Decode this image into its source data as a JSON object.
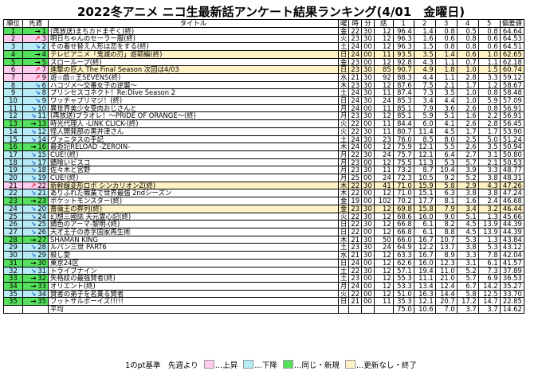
{
  "title": "2022冬アニメ ニコ生最新話アンケート結果ランキング(4/01　金曜日)",
  "headers": {
    "rank": "順位",
    "prev": "先週",
    "title": "タイトル",
    "day": "曜",
    "hour": "時",
    "minute": "分",
    "episode": "話",
    "c1": "1",
    "c2": "2",
    "c3": "3",
    "c4": "4",
    "c5": "5",
    "score": "偏差値"
  },
  "colors": {
    "rising": "#ffccee",
    "falling": "#b7ecf7",
    "steady": "#55e05e",
    "final": "#fff2c4",
    "up_arrow": "#e8192c",
    "down_arrow": "#1c63c8"
  },
  "rows": [
    {
      "rank": "1",
      "status": "steady",
      "mark": "→",
      "prev": "1",
      "title": "(再放送)まちカドまぞく(終)",
      "day": "金",
      "hour": "22",
      "minute": "30",
      "episode": "12",
      "c1": "96.4",
      "c2": "1.4",
      "c3": "0.8",
      "c4": "0.5",
      "c5": "0.8",
      "score": "64.64",
      "final": false
    },
    {
      "rank": "2",
      "status": "rising",
      "mark": "↗",
      "prev": "3",
      "title": "明日ちゃんのセーラー服(終)",
      "day": "火",
      "hour": "23",
      "minute": "30",
      "episode": "12",
      "c1": "96.3",
      "c2": "1.6",
      "c3": "0.6",
      "c4": "0.8",
      "c5": "0.6",
      "score": "64.53",
      "final": false
    },
    {
      "rank": "3",
      "status": "falling",
      "mark": "↘",
      "prev": "2",
      "title": "その着せ替え人形は恋をする(終)",
      "day": "土",
      "hour": "24",
      "minute": "00",
      "episode": "12",
      "c1": "96.3",
      "c2": "1.5",
      "c3": "0.8",
      "c4": "0.8",
      "c5": "0.6",
      "score": "64.51",
      "final": false
    },
    {
      "rank": "4",
      "status": "steady",
      "mark": "→",
      "prev": "4",
      "title": "テレビアニメ「鬼滅の刃」遊郭編(終)",
      "day": "日",
      "hour": "24",
      "minute": "00",
      "episode": "11",
      "c1": "93.5",
      "c2": "3.5",
      "c3": "1.4",
      "c4": "0.6",
      "c5": "1.0",
      "score": "62.65",
      "final": true
    },
    {
      "rank": "5",
      "status": "steady",
      "mark": "→",
      "prev": "5",
      "title": "スローループ(終)",
      "day": "金",
      "hour": "23",
      "minute": "00",
      "episode": "12",
      "c1": "92.8",
      "c2": "4.3",
      "c3": "1.1",
      "c4": "0.7",
      "c5": "1.1",
      "score": "62.18",
      "final": false
    },
    {
      "rank": "6",
      "status": "rising",
      "mark": "↗",
      "prev": "7",
      "title": "進撃の巨人 The Final Season 次回は4/03",
      "day": "日",
      "hour": "23",
      "minute": "30",
      "episode": "85",
      "c1": "90.7",
      "c2": "4.9",
      "c3": "1.8",
      "c4": "1.0",
      "c5": "1.5",
      "score": "60.74",
      "final": true
    },
    {
      "rank": "7",
      "status": "rising",
      "mark": "↗",
      "prev": "9",
      "title": "遊☆戯☆王SEVENS(終)",
      "day": "水",
      "hour": "21",
      "minute": "30",
      "episode": "92",
      "c1": "88.3",
      "c2": "4.4",
      "c3": "1.1",
      "c4": "2.8",
      "c5": "3.3",
      "score": "59.12",
      "final": false
    },
    {
      "rank": "8",
      "status": "falling",
      "mark": "↘",
      "prev": "6",
      "title": "ハコヅメ～交番女子の逆襲～",
      "day": "木",
      "hour": "23",
      "minute": "30",
      "episode": "12",
      "c1": "87.6",
      "c2": "7.5",
      "c3": "2.1",
      "c4": "1.7",
      "c5": "1.2",
      "score": "58.67",
      "final": false
    },
    {
      "rank": "9",
      "status": "falling",
      "mark": "↘",
      "prev": "8",
      "title": "プリンセスコネクト！Re:Dive Season 2",
      "day": "土",
      "hour": "24",
      "minute": "30",
      "episode": "11",
      "c1": "87.4",
      "c2": "7.3",
      "c3": "3.5",
      "c4": "1.0",
      "c5": "0.8",
      "score": "58.48",
      "final": false
    },
    {
      "rank": "10",
      "status": "falling",
      "mark": "↘",
      "prev": "9",
      "title": "ワッチャプリマジ！(終)",
      "day": "日",
      "hour": "24",
      "minute": "30",
      "episode": "24",
      "c1": "85.3",
      "c2": "3.4",
      "c3": "4.4",
      "c4": "1.0",
      "c5": "5.9",
      "score": "57.09",
      "final": false
    },
    {
      "rank": "11",
      "status": "falling",
      "mark": "↘",
      "prev": "10",
      "title": "異世界美少女受肉おじさんと",
      "day": "月",
      "hour": "24",
      "minute": "00",
      "episode": "11",
      "c1": "85.1",
      "c2": "7.9",
      "c3": "3.6",
      "c4": "2.6",
      "c5": "0.8",
      "score": "56.91",
      "final": false
    },
    {
      "rank": "12",
      "status": "falling",
      "mark": "↘",
      "prev": "11",
      "title": "(再放送)プラオレ！～PRIDE OF ORANGE～(終)",
      "day": "月",
      "hour": "23",
      "minute": "30",
      "episode": "12",
      "c1": "85.1",
      "c2": "5.9",
      "c3": "5.1",
      "c4": "1.6",
      "c5": "2.2",
      "score": "56.91",
      "final": false
    },
    {
      "rank": "13",
      "status": "steady",
      "mark": "→",
      "prev": "13",
      "title": "時光代理人 -LINK CLICK-(終)",
      "day": "火",
      "hour": "22",
      "minute": "00",
      "episode": "11",
      "c1": "84.4",
      "c2": "6.0",
      "c3": "4.1",
      "c4": "2.6",
      "c5": "2.8",
      "score": "56.45",
      "final": false
    },
    {
      "rank": "14",
      "status": "falling",
      "mark": "↘",
      "prev": "12",
      "title": "怪人開発部の黒井津さん",
      "day": "火",
      "hour": "22",
      "minute": "30",
      "episode": "11",
      "c1": "80.7",
      "c2": "11.4",
      "c3": "4.5",
      "c4": "1.7",
      "c5": "1.7",
      "score": "53.90",
      "final": false
    },
    {
      "rank": "15",
      "status": "falling",
      "mark": "↘",
      "prev": "14",
      "title": "ヴァニタスの手記",
      "day": "土",
      "hour": "24",
      "minute": "30",
      "episode": "23",
      "c1": "76.0",
      "c2": "8.5",
      "c3": "8.0",
      "c4": "2.5",
      "c5": "5.0",
      "score": "51.24",
      "final": false
    },
    {
      "rank": "16",
      "status": "steady",
      "mark": "→",
      "prev": "16",
      "title": "最遊記RELOAD -ZEROIN-",
      "day": "木",
      "hour": "24",
      "minute": "00",
      "episode": "12",
      "c1": "75.9",
      "c2": "12.1",
      "c3": "5.5",
      "c4": "2.6",
      "c5": "3.5",
      "score": "50.94",
      "final": false
    },
    {
      "rank": "17",
      "status": "falling",
      "mark": "↘",
      "prev": "15",
      "title": "CUE!(終)",
      "day": "月",
      "hour": "22",
      "minute": "30",
      "episode": "24",
      "c1": "75.7",
      "c2": "12.1",
      "c3": "6.4",
      "c4": "2.7",
      "c5": "3.1",
      "score": "50.80",
      "final": false
    },
    {
      "rank": "18",
      "status": "falling",
      "mark": "↘",
      "prev": "17",
      "title": "錆喰いビスコ",
      "day": "月",
      "hour": "23",
      "minute": "00",
      "episode": "12",
      "c1": "75.5",
      "c2": "11.3",
      "c3": "5.3",
      "c4": "5.7",
      "c5": "2.1",
      "score": "50.53",
      "final": false
    },
    {
      "rank": "19",
      "status": "falling",
      "mark": "↘",
      "prev": "18",
      "title": "佐々木と宮野",
      "day": "月",
      "hour": "23",
      "minute": "30",
      "episode": "11",
      "c1": "73.2",
      "c2": "8.7",
      "c3": "10.4",
      "c4": "3.9",
      "c5": "3.3",
      "score": "48.77",
      "final": false
    },
    {
      "rank": "20",
      "status": "falling",
      "mark": "↘",
      "prev": "19",
      "title": "CUE!(終)",
      "day": "月",
      "hour": "25",
      "minute": "00",
      "episode": "24",
      "c1": "72.3",
      "c2": "10.5",
      "c3": "9.2",
      "c4": "5.2",
      "c5": "3.8",
      "score": "48.31",
      "final": false
    },
    {
      "rank": "21",
      "status": "rising",
      "mark": "↗",
      "prev": "22",
      "title": "新幹線変形ロボ シンカリオンZ(終)",
      "day": "木",
      "hour": "22",
      "minute": "30",
      "episode": "41",
      "c1": "71.0",
      "c2": "15.9",
      "c3": "5.8",
      "c4": "2.9",
      "c5": "4.3",
      "score": "47.26",
      "final": true
    },
    {
      "rank": "22",
      "status": "falling",
      "mark": "↘",
      "prev": "21",
      "title": "ありふれた職業で世界最強 2ndシーズン",
      "day": "木",
      "hour": "22",
      "minute": "00",
      "episode": "12",
      "c1": "71.0",
      "c2": "15.1",
      "c3": "6.3",
      "c4": "3.8",
      "c5": "3.8",
      "score": "47.24",
      "final": false
    },
    {
      "rank": "23",
      "status": "steady",
      "mark": "→",
      "prev": "23",
      "title": "ポケットモンスター(終)",
      "day": "金",
      "hour": "19",
      "minute": "00",
      "episode": "102",
      "c1": "70.2",
      "c2": "17.7",
      "c3": "8.1",
      "c4": "1.6",
      "c5": "2.4",
      "score": "46.68",
      "final": false
    },
    {
      "rank": "24",
      "status": "falling",
      "mark": "↘",
      "prev": "20",
      "title": "薔薇王の葬列(終)",
      "day": "金",
      "hour": "23",
      "minute": "30",
      "episode": "12",
      "c1": "69.8",
      "c2": "15.8",
      "c3": "7.9",
      "c4": "3.4",
      "c5": "3.2",
      "score": "46.44",
      "final": true
    },
    {
      "rank": "25",
      "status": "falling",
      "mark": "↘",
      "prev": "24",
      "title": "幻想三國誌 天元霊心記(終)",
      "day": "火",
      "hour": "22",
      "minute": "30",
      "episode": "12",
      "c1": "68.6",
      "c2": "16.0",
      "c3": "9.0",
      "c4": "5.1",
      "c5": "1.3",
      "score": "45.66",
      "final": false
    },
    {
      "rank": "26",
      "status": "falling",
      "mark": "↘",
      "prev": "25",
      "title": "錆色のアーマ-黎明-(終)",
      "day": "日",
      "hour": "22",
      "minute": "30",
      "episode": "12",
      "c1": "66.8",
      "c2": "6.1",
      "c3": "8.2",
      "c4": "4.5",
      "c5": "13.9",
      "score": "44.39",
      "final": false
    },
    {
      "rank": "27",
      "status": "falling",
      "mark": "↘",
      "prev": "26",
      "title": "天才王子の赤字国家再生術",
      "day": "日",
      "hour": "22",
      "minute": "00",
      "episode": "12",
      "c1": "66.8",
      "c2": "6.1",
      "c3": "8.8",
      "c4": "4.5",
      "c5": "13.9",
      "score": "44.39",
      "final": false
    },
    {
      "rank": "28",
      "status": "steady",
      "mark": "→",
      "prev": "27",
      "title": "SHAMAN KING",
      "day": "木",
      "hour": "21",
      "minute": "30",
      "episode": "50",
      "c1": "66.0",
      "c2": "16.7",
      "c3": "10.7",
      "c4": "5.3",
      "c5": "1.3",
      "score": "43.84",
      "final": false
    },
    {
      "rank": "29",
      "status": "falling",
      "mark": "↘",
      "prev": "28",
      "title": "ルパン三世 PART6",
      "day": "土",
      "hour": "23",
      "minute": "30",
      "episode": "24",
      "c1": "64.9",
      "c2": "12.2",
      "c3": "13.7",
      "c4": "3.8",
      "c5": "5.3",
      "score": "43.12",
      "final": false
    },
    {
      "rank": "30",
      "status": "falling",
      "mark": "↘",
      "prev": "29",
      "title": "殺し愛",
      "day": "水",
      "hour": "21",
      "minute": "30",
      "episode": "12",
      "c1": "63.3",
      "c2": "16.7",
      "c3": "8.9",
      "c4": "3.3",
      "c5": "7.8",
      "score": "42.04",
      "final": false
    },
    {
      "rank": "31",
      "status": "steady",
      "mark": "→",
      "prev": "30",
      "title": "東京24区",
      "day": "日",
      "hour": "24",
      "minute": "00",
      "episode": "12",
      "c1": "62.6",
      "c2": "16.0",
      "c3": "12.3",
      "c4": "3.1",
      "c5": "6.1",
      "score": "41.57",
      "final": false
    },
    {
      "rank": "32",
      "status": "falling",
      "mark": "↘",
      "prev": "31",
      "title": "トライブナイン",
      "day": "土",
      "hour": "22",
      "minute": "30",
      "episode": "12",
      "c1": "57.1",
      "c2": "19.4",
      "c3": "11.0",
      "c4": "5.2",
      "c5": "7.3",
      "score": "37.89",
      "final": false
    },
    {
      "rank": "33",
      "status": "steady",
      "mark": "→",
      "prev": "32",
      "title": "失格紋の最強賢者(終)",
      "day": "土",
      "hour": "23",
      "minute": "00",
      "episode": "12",
      "c1": "55.3",
      "c2": "11.1",
      "c3": "21.0",
      "c4": "5.7",
      "c5": "6.9",
      "score": "36.53",
      "final": false
    },
    {
      "rank": "34",
      "status": "steady",
      "mark": "→",
      "prev": "33",
      "title": "オリエント(終)",
      "day": "月",
      "hour": "24",
      "minute": "00",
      "episode": "12",
      "c1": "53.3",
      "c2": "13.4",
      "c3": "12.4",
      "c4": "6.7",
      "c5": "14.2",
      "score": "35.27",
      "final": false
    },
    {
      "rank": "35",
      "status": "falling",
      "mark": "↘",
      "prev": "34",
      "title": "賢者の弟子を名乗る賢者",
      "day": "火",
      "hour": "22",
      "minute": "00",
      "episode": "12",
      "c1": "51.0",
      "c2": "16.3",
      "c3": "14.4",
      "c4": "5.8",
      "c5": "12.5",
      "score": "33.70",
      "final": false
    },
    {
      "rank": "35",
      "status": "steady",
      "mark": "→",
      "prev": "35",
      "title": "フットサルボーイズ!!!!!",
      "day": "日",
      "hour": "21",
      "minute": "00",
      "episode": "11",
      "c1": "35.3",
      "c2": "12.1",
      "c3": "20.7",
      "c4": "17.2",
      "c5": "14.7",
      "score": "22.85",
      "final": false
    }
  ],
  "average": {
    "label": "平均",
    "c1": "75.0",
    "c2": "10.6",
    "c3": "7.0",
    "c4": "3.7",
    "c5": "3.7",
    "score": "14.62"
  },
  "legend": {
    "prefix": "1のpt基準　先週より",
    "rising": "…上昇",
    "falling": "…下降",
    "steady": "…同じ・新規",
    "final": "…更新なし・終了"
  }
}
